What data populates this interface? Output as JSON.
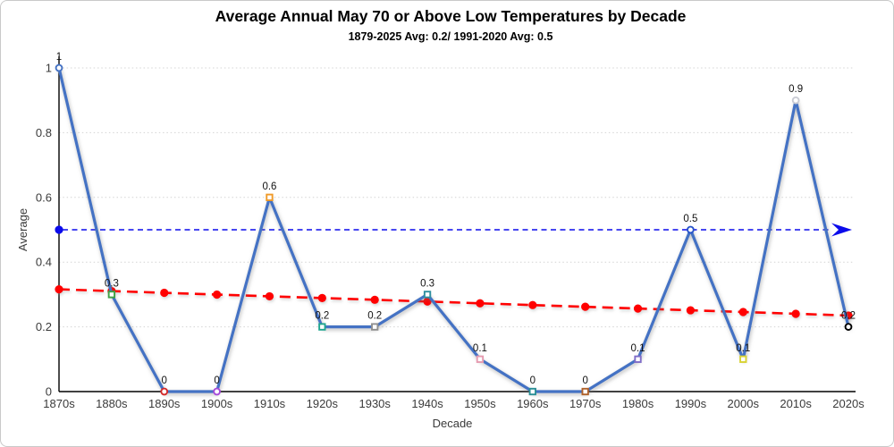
{
  "chart_data": {
    "type": "line",
    "title": "Average Annual May 70 or Above Low Temperatures by Decade",
    "subtitle": "1879-2025 Avg: 0.2/ 1991-2020 Avg: 0.5",
    "xlabel": "Decade",
    "ylabel": "Average",
    "ylim": [
      0,
      1
    ],
    "y_ticks": [
      "0",
      "0.2",
      "0.4",
      "0.6",
      "0.8",
      "1"
    ],
    "grid": true,
    "grid_color": "#d4d4d4",
    "legend": "none",
    "categories": [
      "1870s",
      "1880s",
      "1890s",
      "1900s",
      "1910s",
      "1920s",
      "1930s",
      "1940s",
      "1950s",
      "1960s",
      "1970s",
      "1980s",
      "1990s",
      "2000s",
      "2010s",
      "2020s"
    ],
    "series": [
      {
        "name": "decade-average",
        "type": "line",
        "color": "#4472C4",
        "values": [
          1,
          0.3,
          0,
          0,
          0.6,
          0.2,
          0.2,
          0.3,
          0.1,
          0,
          0,
          0.1,
          0.5,
          0.1,
          0.9,
          0.2
        ],
        "labels": [
          "1",
          "0.3",
          "0",
          "0",
          "0.6",
          "0.2",
          "0.2",
          "0.3",
          "0.1",
          "0",
          "0",
          "0.1",
          "0.5",
          "0.1",
          "0.9",
          "0.2"
        ],
        "marker_colors": [
          "#4472C4",
          "#3FA144",
          "#D42A2A",
          "#A64AD9",
          "#F09A28",
          "#1FA690",
          "#8F8F8F",
          "#2E8FA0",
          "#E69BB0",
          "#2A8F96",
          "#B0622A",
          "#7F6CC8",
          "#2753C9",
          "#D8D232",
          "#C9CBD4",
          "#000000"
        ],
        "marker_shapes": [
          "circle",
          "square",
          "circle",
          "circle",
          "square",
          "square",
          "square",
          "square",
          "square",
          "square",
          "square",
          "square",
          "circle",
          "square",
          "circle",
          "circle"
        ]
      },
      {
        "name": "trendline",
        "type": "trendline",
        "color": "#FF0000",
        "style": "dashed",
        "start": 0.316,
        "end": 0.235,
        "markers": true
      },
      {
        "name": "reference-avg-1991-2020",
        "type": "reference-line",
        "color": "#0B0BEB",
        "style": "dashed",
        "value": 0.5,
        "dot_start": true,
        "arrow_end": true
      }
    ]
  }
}
